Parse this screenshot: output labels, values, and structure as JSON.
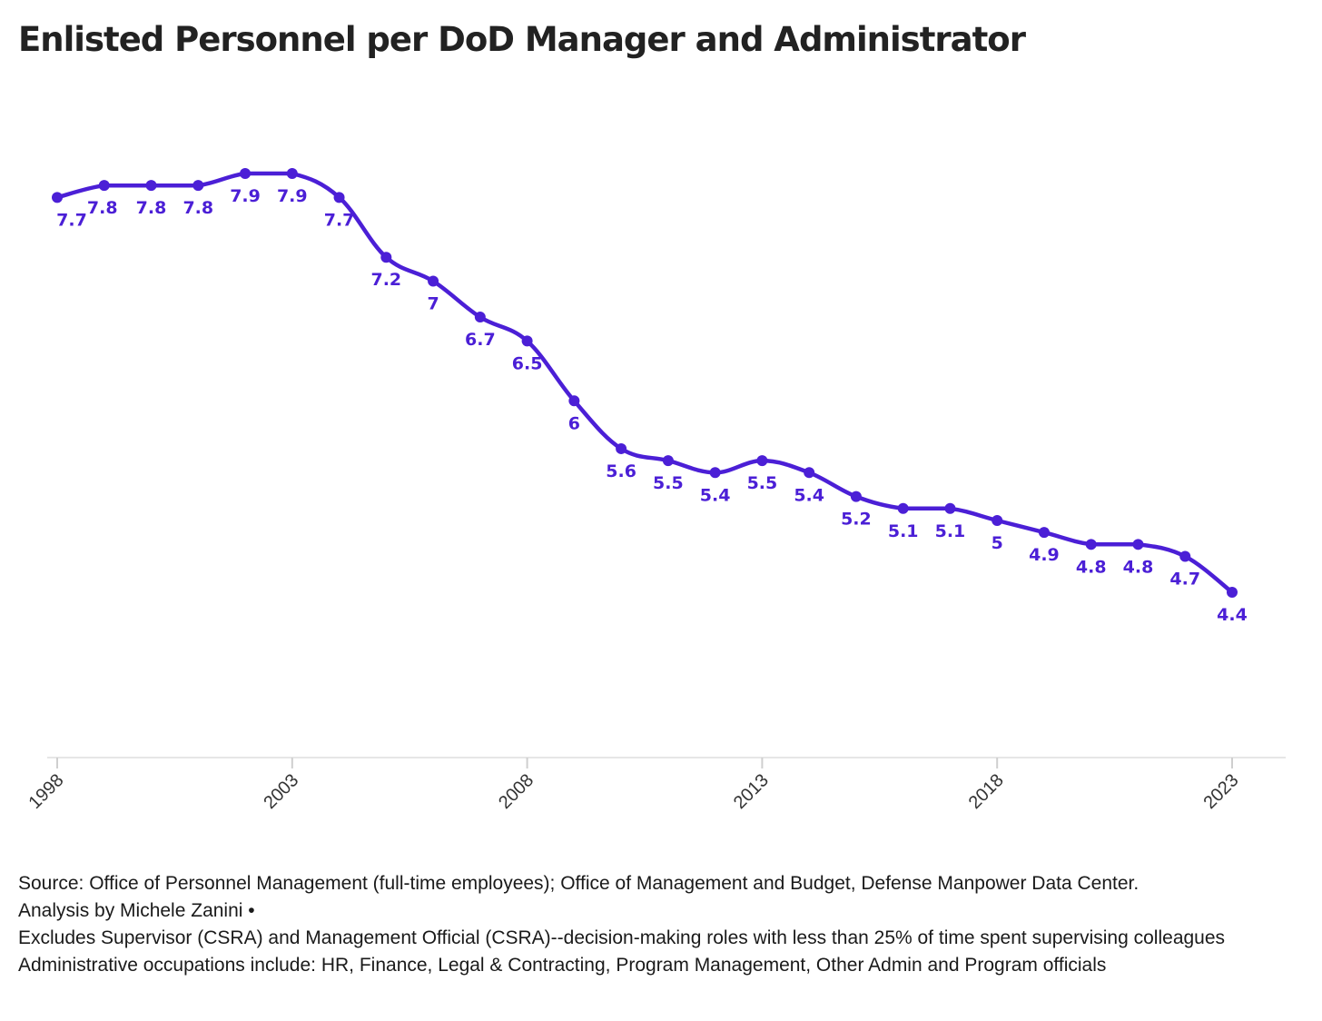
{
  "chart_data": {
    "type": "line",
    "title": "Enlisted Personnel per DoD Manager and Administrator",
    "x": [
      1998,
      1999,
      2000,
      2001,
      2002,
      2003,
      2004,
      2005,
      2006,
      2007,
      2008,
      2009,
      2010,
      2011,
      2012,
      2013,
      2014,
      2015,
      2016,
      2017,
      2018,
      2019,
      2020,
      2021,
      2022,
      2023
    ],
    "series": [
      {
        "values": [
          7.7,
          7.8,
          7.8,
          7.8,
          7.9,
          7.9,
          7.7,
          7.2,
          7,
          6.7,
          6.5,
          6,
          5.6,
          5.5,
          5.4,
          5.5,
          5.4,
          5.2,
          5.1,
          5.1,
          5,
          4.9,
          4.8,
          4.8,
          4.7,
          4.4
        ],
        "color": "#4b1fd6"
      }
    ],
    "x_ticks": [
      "1998",
      "2003",
      "2008",
      "2013",
      "2018",
      "2023"
    ],
    "xlabel": "",
    "ylabel": "",
    "grid": false,
    "line_color": "#4b1fd6"
  },
  "footer": {
    "line1": "Source: Office of Personnel Management (full-time employees); Office of Management and Budget, Defense Manpower Data Center.",
    "line2": "Analysis by Michele Zanini •",
    "line3": "Excludes Supervisor (CSRA) and Management Official (CSRA)--decision-making roles with less than 25% of time spent supervising colleagues",
    "line4": "Administrative occupations include: HR, Finance, Legal & Contracting, Program Management, Other Admin and Program officials"
  }
}
